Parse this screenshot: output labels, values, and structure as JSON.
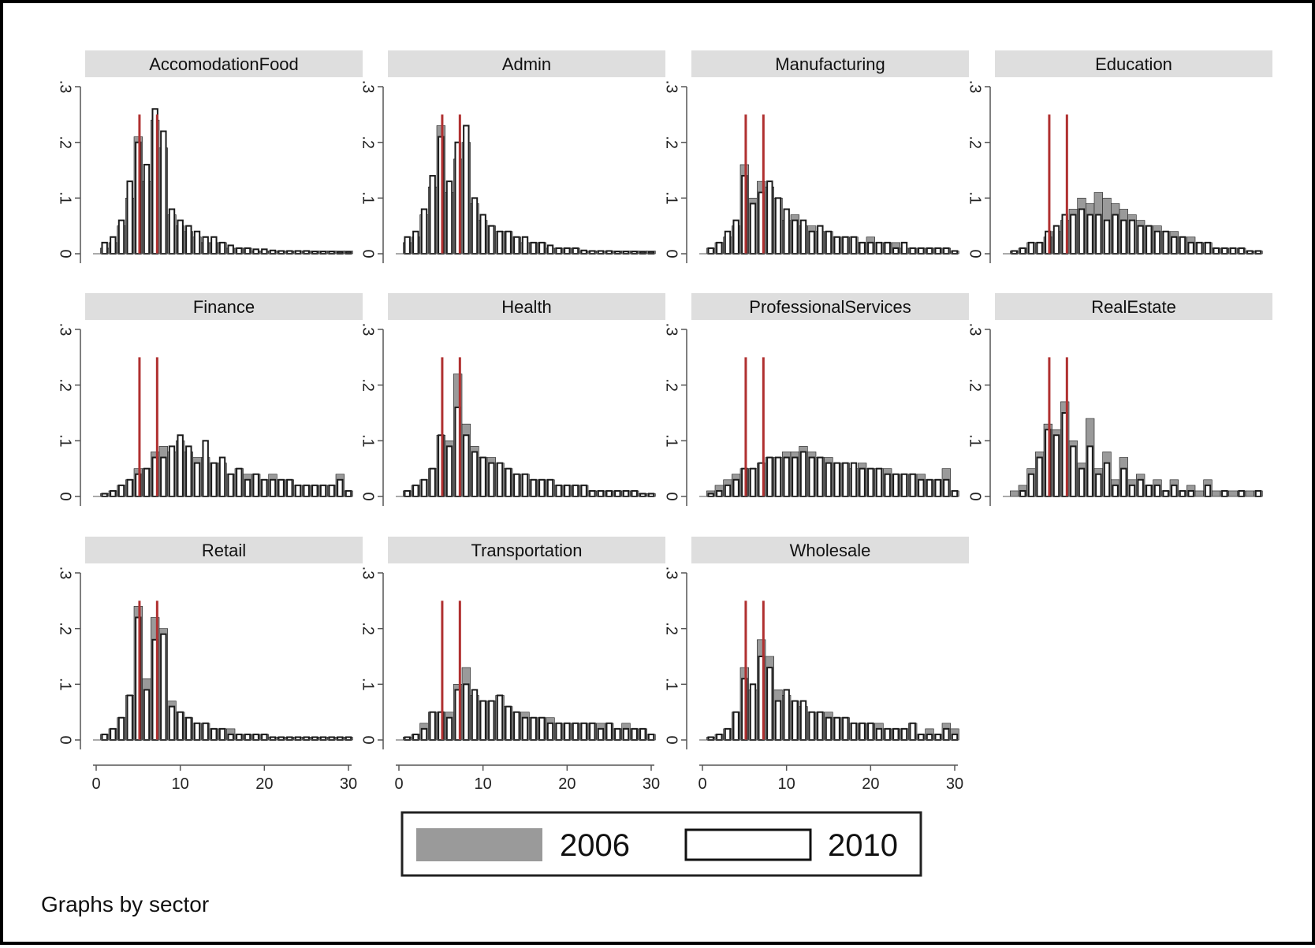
{
  "caption": "Graphs by sector",
  "colors": {
    "y2006": "#9a9a9a",
    "y2010": "#ffffff",
    "edge": "#1a1a1a",
    "ref": "#b03030",
    "strip": "#dedede"
  },
  "chart_data": {
    "type": "histogram",
    "xlim": [
      0,
      30
    ],
    "ylim": [
      0,
      0.3
    ],
    "xticks": [
      "0",
      "10",
      "20",
      "30"
    ],
    "yticks": [
      "0",
      ".1",
      ".2",
      ".3"
    ],
    "reference_lines_x": [
      5.15,
      7.25
    ],
    "reference_line_height": 0.25,
    "bin_start": 1,
    "bin_width": 1,
    "legend": [
      {
        "label": "2006",
        "key": "y2006"
      },
      {
        "label": "2010",
        "key": "y2010"
      }
    ],
    "panels": [
      {
        "name": "AccomodationFood",
        "v2006": [
          0.01,
          0.02,
          0.05,
          0.1,
          0.21,
          0.13,
          0.24,
          0.19,
          0.07,
          0.05,
          0.04,
          0.03,
          0.02,
          0.02,
          0.02,
          0.01,
          0.01,
          0.01,
          0.005,
          0.005,
          0.005,
          0.005,
          0.005,
          0.005,
          0.005,
          0.005,
          0.005,
          0.005,
          0.005,
          0.005
        ],
        "v2010": [
          0.02,
          0.03,
          0.06,
          0.13,
          0.2,
          0.16,
          0.26,
          0.22,
          0.08,
          0.06,
          0.05,
          0.04,
          0.03,
          0.03,
          0.02,
          0.015,
          0.01,
          0.01,
          0.008,
          0.008,
          0.006,
          0.005,
          0.005,
          0.005,
          0.005,
          0.004,
          0.004,
          0.004,
          0.003,
          0.003
        ]
      },
      {
        "name": "Admin",
        "v2006": [
          0.02,
          0.03,
          0.07,
          0.12,
          0.23,
          0.11,
          0.17,
          0.2,
          0.09,
          0.06,
          0.05,
          0.04,
          0.04,
          0.03,
          0.02,
          0.02,
          0.02,
          0.01,
          0.01,
          0.01,
          0.01,
          0.005,
          0.005,
          0.005,
          0.005,
          0.005,
          0.005,
          0.005,
          0.005,
          0.005
        ],
        "v2010": [
          0.03,
          0.04,
          0.08,
          0.14,
          0.21,
          0.13,
          0.2,
          0.23,
          0.1,
          0.07,
          0.05,
          0.04,
          0.04,
          0.03,
          0.03,
          0.02,
          0.02,
          0.015,
          0.01,
          0.01,
          0.01,
          0.006,
          0.005,
          0.005,
          0.005,
          0.004,
          0.004,
          0.004,
          0.003,
          0.003
        ]
      },
      {
        "name": "Manufacturing",
        "v2006": [
          0.01,
          0.02,
          0.03,
          0.05,
          0.16,
          0.1,
          0.13,
          0.12,
          0.1,
          0.06,
          0.07,
          0.05,
          0.05,
          0.04,
          0.04,
          0.03,
          0.03,
          0.03,
          0.02,
          0.03,
          0.02,
          0.02,
          0.02,
          0.01,
          0.01,
          0.01,
          0.01,
          0.01,
          0.01,
          0.005
        ],
        "v2010": [
          0.01,
          0.02,
          0.04,
          0.06,
          0.14,
          0.09,
          0.11,
          0.13,
          0.1,
          0.08,
          0.06,
          0.06,
          0.04,
          0.05,
          0.04,
          0.03,
          0.03,
          0.03,
          0.02,
          0.02,
          0.02,
          0.02,
          0.01,
          0.02,
          0.01,
          0.01,
          0.01,
          0.01,
          0.01,
          0.005
        ]
      },
      {
        "name": "Education",
        "v2006": [
          0.005,
          0.01,
          0.02,
          0.02,
          0.03,
          0.04,
          0.06,
          0.08,
          0.1,
          0.09,
          0.11,
          0.1,
          0.09,
          0.08,
          0.07,
          0.06,
          0.05,
          0.05,
          0.04,
          0.04,
          0.03,
          0.03,
          0.02,
          0.02,
          0.01,
          0.01,
          0.01,
          0.01,
          0.005,
          0.005
        ],
        "v2010": [
          0.005,
          0.01,
          0.02,
          0.02,
          0.04,
          0.05,
          0.07,
          0.07,
          0.08,
          0.07,
          0.07,
          0.06,
          0.07,
          0.06,
          0.06,
          0.05,
          0.05,
          0.04,
          0.04,
          0.03,
          0.03,
          0.02,
          0.02,
          0.02,
          0.01,
          0.01,
          0.01,
          0.01,
          0.005,
          0.005
        ]
      },
      {
        "name": "Finance",
        "v2006": [
          0.005,
          0.01,
          0.02,
          0.03,
          0.05,
          0.05,
          0.08,
          0.09,
          0.08,
          0.1,
          0.08,
          0.07,
          0.07,
          0.06,
          0.06,
          0.04,
          0.05,
          0.04,
          0.04,
          0.03,
          0.04,
          0.03,
          0.03,
          0.02,
          0.02,
          0.02,
          0.02,
          0.02,
          0.04,
          0.01
        ],
        "v2010": [
          0.005,
          0.01,
          0.02,
          0.03,
          0.04,
          0.05,
          0.07,
          0.07,
          0.09,
          0.11,
          0.09,
          0.06,
          0.1,
          0.06,
          0.07,
          0.04,
          0.05,
          0.03,
          0.04,
          0.03,
          0.03,
          0.03,
          0.03,
          0.02,
          0.02,
          0.02,
          0.02,
          0.02,
          0.03,
          0.01
        ]
      },
      {
        "name": "Health",
        "v2006": [
          0.01,
          0.02,
          0.03,
          0.05,
          0.11,
          0.1,
          0.22,
          0.13,
          0.09,
          0.07,
          0.07,
          0.06,
          0.05,
          0.04,
          0.04,
          0.03,
          0.03,
          0.03,
          0.02,
          0.02,
          0.02,
          0.02,
          0.01,
          0.01,
          0.01,
          0.01,
          0.01,
          0.01,
          0.005,
          0.005
        ],
        "v2010": [
          0.01,
          0.02,
          0.03,
          0.05,
          0.11,
          0.09,
          0.16,
          0.11,
          0.08,
          0.07,
          0.06,
          0.06,
          0.05,
          0.04,
          0.04,
          0.03,
          0.03,
          0.03,
          0.02,
          0.02,
          0.02,
          0.02,
          0.01,
          0.01,
          0.01,
          0.01,
          0.01,
          0.01,
          0.005,
          0.005
        ]
      },
      {
        "name": "ProfessionalServices",
        "v2006": [
          0.01,
          0.02,
          0.03,
          0.04,
          0.05,
          0.05,
          0.06,
          0.07,
          0.07,
          0.08,
          0.08,
          0.09,
          0.08,
          0.07,
          0.07,
          0.06,
          0.06,
          0.05,
          0.06,
          0.05,
          0.05,
          0.05,
          0.04,
          0.04,
          0.04,
          0.04,
          0.03,
          0.03,
          0.05,
          0.01
        ],
        "v2010": [
          0.005,
          0.01,
          0.02,
          0.03,
          0.05,
          0.05,
          0.06,
          0.07,
          0.07,
          0.07,
          0.07,
          0.08,
          0.07,
          0.07,
          0.06,
          0.06,
          0.06,
          0.06,
          0.05,
          0.05,
          0.05,
          0.04,
          0.04,
          0.04,
          0.04,
          0.03,
          0.03,
          0.03,
          0.03,
          0.01
        ]
      },
      {
        "name": "RealEstate",
        "v2006": [
          0.01,
          0.02,
          0.05,
          0.08,
          0.13,
          0.12,
          0.17,
          0.1,
          0.06,
          0.14,
          0.05,
          0.08,
          0.03,
          0.07,
          0.03,
          0.04,
          0.02,
          0.03,
          0.01,
          0.03,
          0.01,
          0.02,
          0.01,
          0.03,
          0.01,
          0.01,
          0.01,
          0.01,
          0.01,
          0.01
        ],
        "v2010": [
          0.0,
          0.01,
          0.04,
          0.07,
          0.12,
          0.11,
          0.15,
          0.09,
          0.05,
          0.09,
          0.04,
          0.06,
          0.02,
          0.05,
          0.02,
          0.03,
          0.02,
          0.02,
          0.01,
          0.02,
          0.01,
          0.01,
          0.0,
          0.02,
          0.0,
          0.01,
          0.0,
          0.01,
          0.0,
          0.01
        ]
      },
      {
        "name": "Retail",
        "v2006": [
          0.01,
          0.02,
          0.04,
          0.08,
          0.24,
          0.11,
          0.22,
          0.2,
          0.07,
          0.05,
          0.04,
          0.03,
          0.03,
          0.02,
          0.02,
          0.02,
          0.01,
          0.01,
          0.01,
          0.01,
          0.005,
          0.005,
          0.005,
          0.005,
          0.005,
          0.005,
          0.005,
          0.005,
          0.005,
          0.005
        ],
        "v2010": [
          0.01,
          0.02,
          0.04,
          0.08,
          0.22,
          0.09,
          0.18,
          0.19,
          0.06,
          0.05,
          0.04,
          0.03,
          0.03,
          0.02,
          0.02,
          0.01,
          0.01,
          0.01,
          0.01,
          0.01,
          0.005,
          0.005,
          0.005,
          0.005,
          0.005,
          0.005,
          0.005,
          0.005,
          0.005,
          0.005
        ]
      },
      {
        "name": "Transportation",
        "v2006": [
          0.005,
          0.01,
          0.03,
          0.05,
          0.05,
          0.05,
          0.1,
          0.13,
          0.08,
          0.07,
          0.07,
          0.08,
          0.06,
          0.05,
          0.05,
          0.04,
          0.04,
          0.04,
          0.03,
          0.03,
          0.03,
          0.03,
          0.03,
          0.03,
          0.03,
          0.02,
          0.03,
          0.02,
          0.02,
          0.01
        ],
        "v2010": [
          0.005,
          0.01,
          0.02,
          0.05,
          0.05,
          0.04,
          0.09,
          0.1,
          0.09,
          0.07,
          0.07,
          0.08,
          0.06,
          0.05,
          0.04,
          0.04,
          0.04,
          0.03,
          0.03,
          0.03,
          0.03,
          0.03,
          0.03,
          0.02,
          0.03,
          0.02,
          0.02,
          0.02,
          0.02,
          0.01
        ]
      },
      {
        "name": "Wholesale",
        "v2006": [
          0.005,
          0.01,
          0.02,
          0.05,
          0.13,
          0.09,
          0.18,
          0.15,
          0.09,
          0.08,
          0.07,
          0.06,
          0.05,
          0.05,
          0.05,
          0.04,
          0.04,
          0.03,
          0.03,
          0.03,
          0.03,
          0.02,
          0.02,
          0.02,
          0.03,
          0.01,
          0.02,
          0.01,
          0.03,
          0.02
        ],
        "v2010": [
          0.005,
          0.01,
          0.02,
          0.05,
          0.11,
          0.1,
          0.15,
          0.13,
          0.07,
          0.09,
          0.07,
          0.07,
          0.05,
          0.05,
          0.04,
          0.04,
          0.04,
          0.03,
          0.03,
          0.03,
          0.02,
          0.02,
          0.02,
          0.02,
          0.03,
          0.01,
          0.01,
          0.01,
          0.02,
          0.01
        ]
      }
    ]
  }
}
